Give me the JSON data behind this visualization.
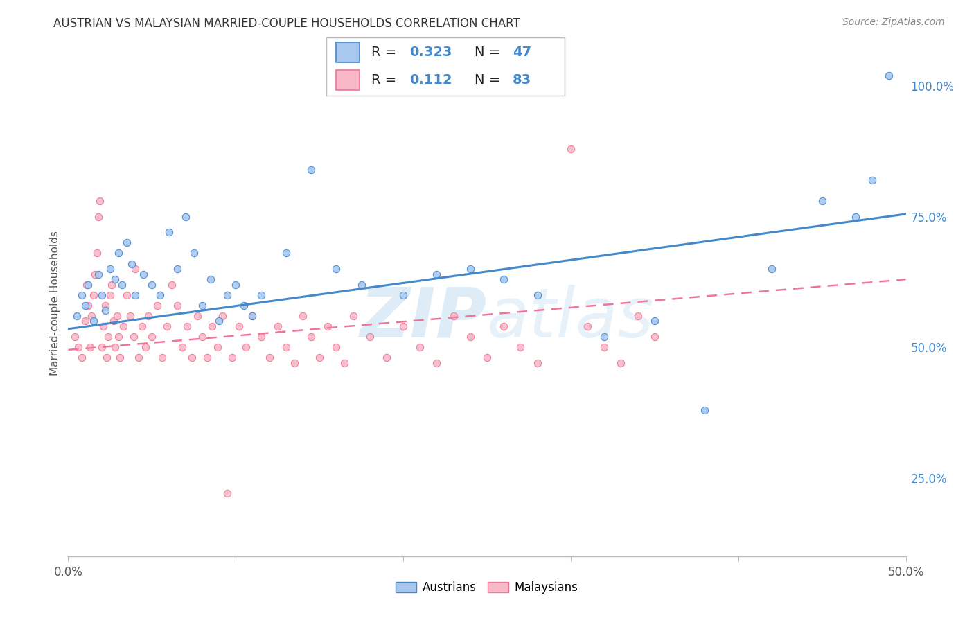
{
  "title": "AUSTRIAN VS MALAYSIAN MARRIED-COUPLE HOUSEHOLDS CORRELATION CHART",
  "source": "Source: ZipAtlas.com",
  "ylabel": "Married-couple Households",
  "xmin": 0.0,
  "xmax": 0.5,
  "ymin": 0.1,
  "ymax": 1.07,
  "xticks": [
    0.0,
    0.1,
    0.2,
    0.3,
    0.4,
    0.5
  ],
  "xtick_labels": [
    "0.0%",
    "",
    "",
    "",
    "",
    "50.0%"
  ],
  "yticks": [
    0.25,
    0.5,
    0.75,
    1.0
  ],
  "ytick_labels": [
    "25.0%",
    "50.0%",
    "75.0%",
    "100.0%"
  ],
  "austrians_R": 0.323,
  "austrians_N": 47,
  "malaysians_R": 0.112,
  "malaysians_N": 83,
  "austrians_color": "#A8C8F0",
  "malaysians_color": "#F8B8C8",
  "trendline_austrians_color": "#4488CC",
  "trendline_malaysians_color": "#EE7799",
  "background_color": "#ffffff",
  "aus_trendline_y0": 0.535,
  "aus_trendline_y1": 0.755,
  "mal_trendline_y0": 0.495,
  "mal_trendline_y1": 0.63
}
